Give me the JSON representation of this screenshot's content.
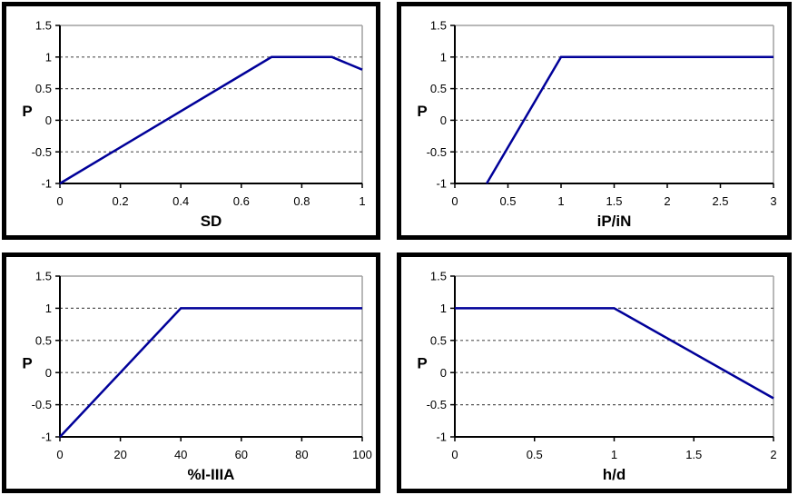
{
  "page": {
    "background_color": "#ffffff",
    "panel_border_color": "#000000"
  },
  "styles": {
    "line_color": "#000099",
    "axis_color": "#000000",
    "gridline_color": "#555555",
    "plot_border_color": "#a0a0a0",
    "label_color": "#000000"
  },
  "chart_data": [
    {
      "type": "line",
      "title": "",
      "xlabel": "SD",
      "ylabel": "P",
      "points": [
        [
          0,
          -1
        ],
        [
          0.7,
          1
        ],
        [
          0.9,
          1
        ],
        [
          1,
          0.8
        ]
      ],
      "xlim": [
        0,
        1
      ],
      "ylim": [
        -1,
        1.5
      ],
      "xticks": [
        0,
        0.2,
        0.4,
        0.6,
        0.8,
        1
      ],
      "xtick_labels": [
        "0",
        "0.2",
        "0.4",
        "0.6",
        "0.8",
        "1"
      ],
      "yticks": [
        -1,
        -0.5,
        0,
        0.5,
        1,
        1.5
      ],
      "ytick_labels": [
        "-1",
        "-0.5",
        "0",
        "0.5",
        "1",
        "1.5"
      ],
      "grid": "horizontal-dashed",
      "legend": "none",
      "line_color": "#000099"
    },
    {
      "type": "line",
      "title": "",
      "xlabel": "iP/iN",
      "ylabel": "P",
      "points": [
        [
          0.3,
          -1
        ],
        [
          1,
          1
        ],
        [
          3,
          1
        ]
      ],
      "xlim": [
        0,
        3
      ],
      "ylim": [
        -1,
        1.5
      ],
      "xticks": [
        0,
        0.5,
        1,
        1.5,
        2,
        2.5,
        3
      ],
      "xtick_labels": [
        "0",
        "0.5",
        "1",
        "1.5",
        "2",
        "2.5",
        "3"
      ],
      "yticks": [
        -1,
        -0.5,
        0,
        0.5,
        1,
        1.5
      ],
      "ytick_labels": [
        "-1",
        "-0.5",
        "0",
        "0.5",
        "1",
        "1.5"
      ],
      "grid": "horizontal-dashed",
      "legend": "none",
      "line_color": "#000099"
    },
    {
      "type": "line",
      "title": "",
      "xlabel": "%I-IIIA",
      "ylabel": "P",
      "points": [
        [
          0,
          -1
        ],
        [
          40,
          1
        ],
        [
          100,
          1
        ]
      ],
      "xlim": [
        0,
        100
      ],
      "ylim": [
        -1,
        1.5
      ],
      "xticks": [
        0,
        20,
        40,
        60,
        80,
        100
      ],
      "xtick_labels": [
        "0",
        "20",
        "40",
        "60",
        "80",
        "100"
      ],
      "yticks": [
        -1,
        -0.5,
        0,
        0.5,
        1,
        1.5
      ],
      "ytick_labels": [
        "-1",
        "-0.5",
        "0",
        "0.5",
        "1",
        "1.5"
      ],
      "grid": "horizontal-dashed",
      "legend": "none",
      "line_color": "#000099"
    },
    {
      "type": "line",
      "title": "",
      "xlabel": "h/d",
      "ylabel": "P",
      "points": [
        [
          0,
          1
        ],
        [
          1,
          1
        ],
        [
          2,
          -0.4
        ]
      ],
      "xlim": [
        0,
        2
      ],
      "ylim": [
        -1,
        1.5
      ],
      "xticks": [
        0,
        0.5,
        1,
        1.5,
        2
      ],
      "xtick_labels": [
        "0",
        "0.5",
        "1",
        "1.5",
        "2"
      ],
      "yticks": [
        -1,
        -0.5,
        0,
        0.5,
        1,
        1.5
      ],
      "ytick_labels": [
        "-1",
        "-0.5",
        "0",
        "0.5",
        "1",
        "1.5"
      ],
      "grid": "horizontal-dashed",
      "legend": "none",
      "line_color": "#000099"
    }
  ]
}
